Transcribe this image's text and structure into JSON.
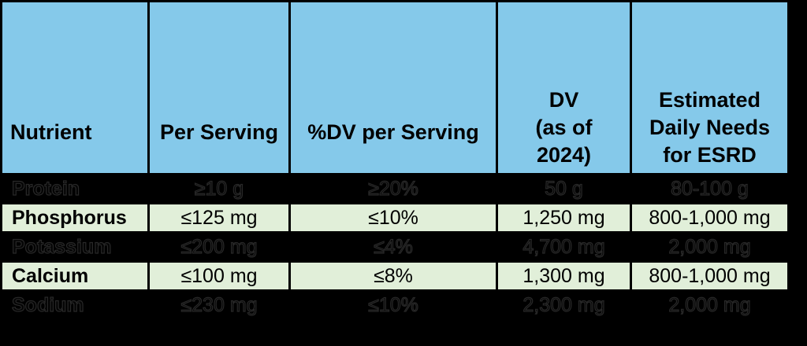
{
  "style": {
    "page_bg": "#000000",
    "header_bg": "#85C9EA",
    "highlight_bg": "#E1EFD9",
    "dark_bg": "#000000",
    "border_color": "#000000",
    "dark_outline": "#282828",
    "text_color": "#000000"
  },
  "chart_data": {
    "type": "table",
    "title": "",
    "legend": "none",
    "grid": "black cell borders, header row blue, highlighted rows light green, non-highlighted rows blacked out",
    "columns": [
      {
        "id": "nutrient",
        "lines": [
          "Nutrient"
        ]
      },
      {
        "id": "per_serving",
        "lines": [
          "Per Serving"
        ]
      },
      {
        "id": "dv_per_serving",
        "lines": [
          "%DV per Serving"
        ]
      },
      {
        "id": "dv_2024",
        "lines": [
          "DV",
          "(as of",
          "2024)"
        ]
      },
      {
        "id": "esrd_needs",
        "lines": [
          "Estimated",
          "Daily Needs",
          "for ESRD"
        ]
      }
    ],
    "rows": [
      {
        "cells": [
          "Protein",
          "≥10 g",
          "≥20%",
          "50 g",
          "80-100 g"
        ],
        "highlighted": false
      },
      {
        "cells": [
          "Phosphorus",
          "≤125 mg",
          "≤10%",
          "1,250 mg",
          "800-1,000 mg"
        ],
        "highlighted": true
      },
      {
        "cells": [
          "Potassium",
          "≤200 mg",
          "≤4%",
          "4,700 mg",
          "2,000 mg"
        ],
        "highlighted": false
      },
      {
        "cells": [
          "Calcium",
          "≤100 mg",
          "≤8%",
          "1,300 mg",
          "800-1,000 mg"
        ],
        "highlighted": true
      },
      {
        "cells": [
          "Sodium",
          "≤230 mg",
          "≤10%",
          "2,300 mg",
          "2,000 mg"
        ],
        "highlighted": false
      }
    ]
  }
}
